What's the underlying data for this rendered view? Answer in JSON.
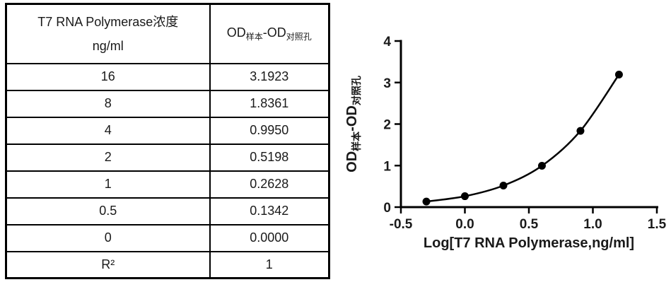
{
  "table": {
    "header": {
      "col1_line1": "T7 RNA Polymerase浓度",
      "col1_line2": "ng/ml",
      "col2_parts": [
        {
          "text": "OD",
          "sub": false
        },
        {
          "text": "样本",
          "sub": true
        },
        {
          "text": "-",
          "sub": false
        },
        {
          "text": "OD",
          "sub": false
        },
        {
          "text": "对照孔",
          "sub": true
        }
      ]
    },
    "rows": [
      {
        "concentration": "16",
        "od": "3.1923"
      },
      {
        "concentration": "8",
        "od": "1.8361"
      },
      {
        "concentration": "4",
        "od": "0.9950"
      },
      {
        "concentration": "2",
        "od": "0.5198"
      },
      {
        "concentration": "1",
        "od": "0.2628"
      },
      {
        "concentration": "0.5",
        "od": "0.1342"
      },
      {
        "concentration": "0",
        "od": "0.0000"
      },
      {
        "concentration": "R²",
        "od": "1"
      }
    ]
  },
  "chart_data": {
    "type": "scatter",
    "title": "",
    "xlabel": "Log[T7 RNA Polymerase,ng/ml]",
    "ylabel_parts": [
      {
        "text": "OD",
        "sub": false
      },
      {
        "text": "样本",
        "sub": true
      },
      {
        "text": "-",
        "sub": false
      },
      {
        "text": "OD",
        "sub": false
      },
      {
        "text": "对照孔",
        "sub": true
      }
    ],
    "x": [
      -0.301,
      0,
      0.301,
      0.602,
      0.903,
      1.204
    ],
    "y": [
      0.1342,
      0.2628,
      0.5198,
      0.995,
      1.8361,
      3.1923
    ],
    "xlim": [
      -0.5,
      1.5
    ],
    "ylim": [
      0,
      4
    ],
    "xticks": [
      -0.5,
      0,
      0.5,
      1,
      1.5
    ],
    "xtick_labels": [
      "-0.5",
      "0.0",
      "0.5",
      "1.0",
      "1.5"
    ],
    "yticks": [
      0,
      1,
      2,
      3,
      4
    ],
    "ytick_labels": [
      "0",
      "1",
      "2",
      "3",
      "4"
    ],
    "grid": false,
    "legend": "none",
    "curve": "smooth",
    "line_color": "#000000",
    "marker_color": "#000000",
    "axis_color": "#000000"
  },
  "colors": {
    "background": "#ffffff",
    "table_border": "#000000",
    "text": "#1a1a1a"
  }
}
